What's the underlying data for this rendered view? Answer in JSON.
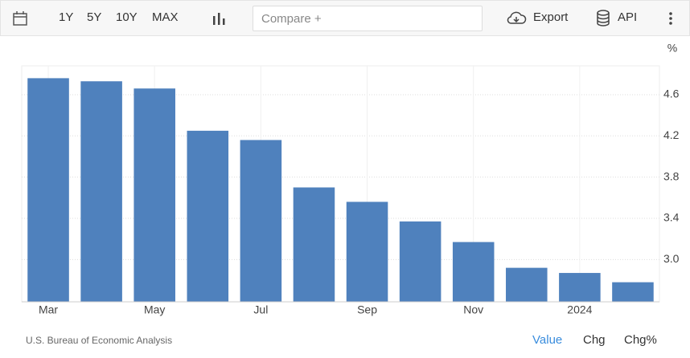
{
  "toolbar": {
    "ranges": [
      "1Y",
      "5Y",
      "10Y",
      "MAX"
    ],
    "compare_placeholder": "Compare +",
    "export": "Export",
    "api": "API"
  },
  "chart_data": {
    "type": "bar",
    "categories": [
      "Mar",
      null,
      "May",
      null,
      "Jul",
      null,
      "Sep",
      null,
      "Nov",
      null,
      "2024",
      null
    ],
    "values": [
      4.76,
      4.73,
      4.66,
      4.25,
      4.16,
      3.7,
      3.56,
      3.37,
      3.17,
      2.92,
      2.87,
      2.78
    ],
    "color": "#4f81bd",
    "y_unit": "%",
    "ylim": [
      2.59,
      4.88
    ],
    "yticks": [
      {
        "value": 3,
        "label": "3.0"
      },
      3.4,
      3.8,
      4.2,
      4.6
    ],
    "grid": true
  },
  "source": "U.S. Bureau of Economic Analysis",
  "footer_tabs": [
    "Value",
    "Chg",
    "Chg%"
  ]
}
